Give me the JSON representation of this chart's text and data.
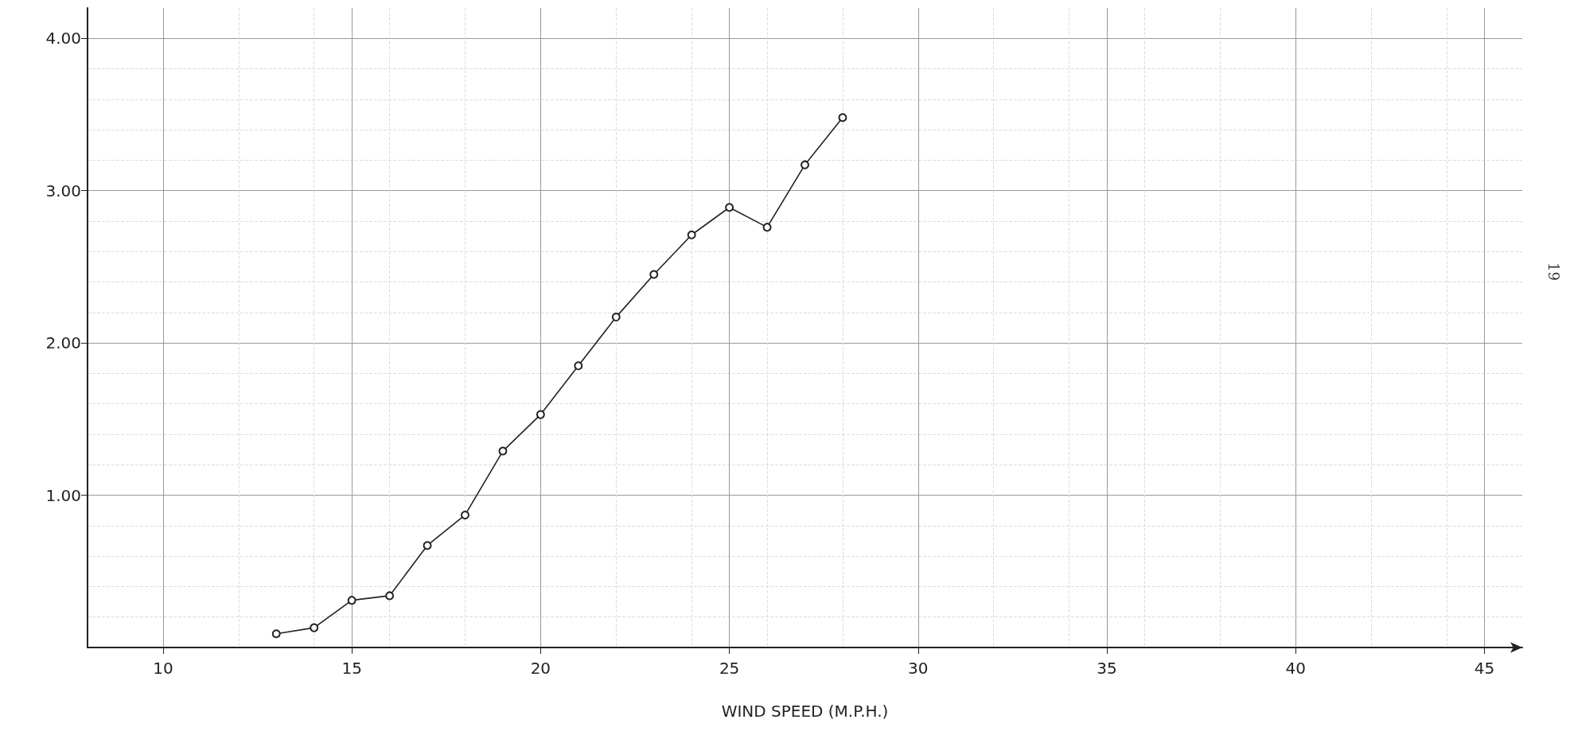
{
  "chart_data": {
    "type": "line",
    "xlabel": "WIND SPEED (M.P.H.)",
    "annotations": [
      "19"
    ],
    "x": [
      13,
      14,
      15,
      16,
      17,
      18,
      19,
      20,
      21,
      22,
      23,
      24,
      25,
      26,
      27,
      28
    ],
    "series": [
      {
        "color": "#222222",
        "values": [
          0.09,
          0.13,
          0.31,
          0.34,
          0.67,
          0.87,
          1.29,
          1.53,
          1.85,
          2.17,
          2.45,
          2.71,
          2.89,
          2.76,
          3.17,
          3.48
        ]
      }
    ],
    "xlim": [
      8,
      46
    ],
    "xticks": [
      10,
      15,
      20,
      25,
      30,
      35,
      40,
      45
    ],
    "ylim": [
      0,
      4.2
    ],
    "yticks": [
      {
        "value": 1,
        "label": "1.00"
      },
      {
        "value": 2,
        "label": "2.00"
      },
      {
        "value": 3,
        "label": "3.00"
      },
      {
        "value": 4,
        "label": "4.00"
      }
    ],
    "grid": true,
    "marker": "circle",
    "line_style": "solid"
  }
}
